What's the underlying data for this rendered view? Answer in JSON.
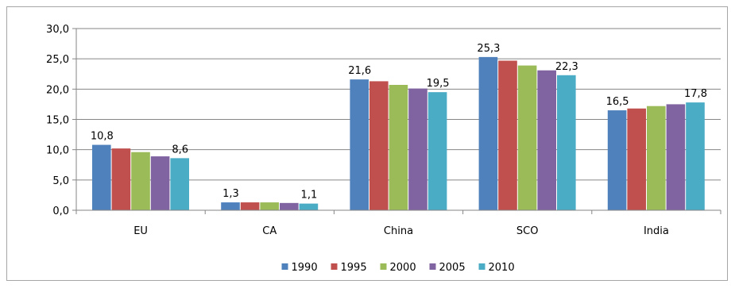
{
  "chart_data": {
    "type": "bar",
    "categories": [
      "EU",
      "CA",
      "China",
      "SCO",
      "India"
    ],
    "series": [
      {
        "name": "1990",
        "color": "#4F81BD",
        "values": [
          10.8,
          1.3,
          21.6,
          25.3,
          16.5
        ]
      },
      {
        "name": "1995",
        "color": "#C0504D",
        "values": [
          10.2,
          1.3,
          21.3,
          24.7,
          16.8
        ]
      },
      {
        "name": "2000",
        "color": "#9BBB59",
        "values": [
          9.6,
          1.3,
          20.7,
          23.9,
          17.2
        ]
      },
      {
        "name": "2005",
        "color": "#8064A2",
        "values": [
          8.9,
          1.2,
          20.1,
          23.1,
          17.5
        ]
      },
      {
        "name": "2010",
        "color": "#4BACC6",
        "values": [
          8.6,
          1.1,
          19.5,
          22.3,
          17.8
        ]
      }
    ],
    "yticks": [
      "0,0",
      "5,0",
      "10,0",
      "15,0",
      "20,0",
      "25,0",
      "30,0"
    ],
    "ylim": [
      0,
      30
    ],
    "grid": true,
    "legend_position": "bottom",
    "data_labels": [
      {
        "category": 0,
        "series": 0,
        "text": "10,8"
      },
      {
        "category": 0,
        "series": 4,
        "text": "8,6"
      },
      {
        "category": 1,
        "series": 0,
        "text": "1,3"
      },
      {
        "category": 1,
        "series": 4,
        "text": "1,1"
      },
      {
        "category": 2,
        "series": 0,
        "text": "21,6"
      },
      {
        "category": 2,
        "series": 4,
        "text": "19,5"
      },
      {
        "category": 3,
        "series": 0,
        "text": "25,3"
      },
      {
        "category": 3,
        "series": 4,
        "text": "22,3"
      },
      {
        "category": 4,
        "series": 0,
        "text": "16,5"
      },
      {
        "category": 4,
        "series": 4,
        "text": "17,8"
      }
    ]
  }
}
